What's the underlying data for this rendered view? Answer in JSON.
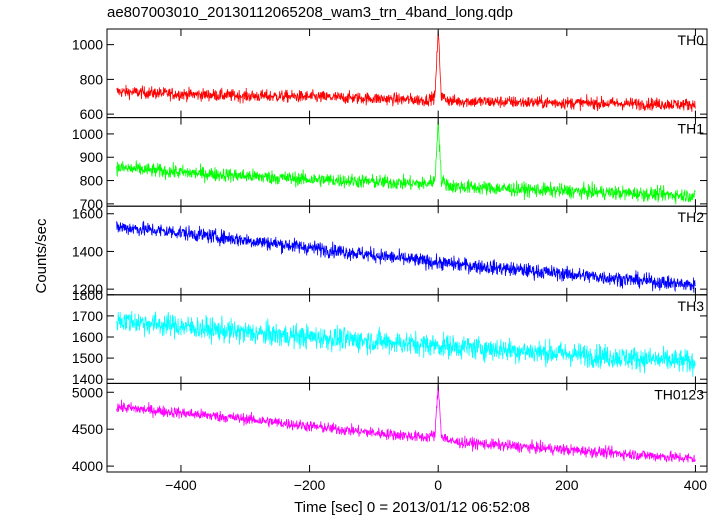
{
  "chart_data": {
    "type": "line",
    "title": "ae807003010_20130112065208_wam3_trn_4band_long.qdp",
    "xlabel": "Time [sec] 0 = 2013/01/12 06:52:08",
    "ylabel": "Counts/sec",
    "xlim": [
      -515,
      418
    ],
    "x_ticks": [
      -400,
      -200,
      0,
      200,
      400
    ],
    "x_tick_labels": [
      "−400",
      "−200",
      "0",
      "200",
      "400"
    ],
    "grid": false,
    "panels": [
      {
        "name": "TH0",
        "color": "#ff0000",
        "ylim": [
          580,
          1090
        ],
        "y_ticks": [
          600,
          800,
          1000
        ],
        "y_tick_labels": [
          "600",
          "800",
          "1000"
        ],
        "x": [
          -500,
          -400,
          -300,
          -200,
          -100,
          -20,
          -5,
          0,
          5,
          20,
          100,
          200,
          300,
          400
        ],
        "values": [
          730,
          715,
          705,
          700,
          690,
          680,
          700,
          1080,
          700,
          675,
          670,
          665,
          660,
          655
        ],
        "noise": 35
      },
      {
        "name": "TH1",
        "color": "#00ff00",
        "ylim": [
          690,
          1070
        ],
        "y_ticks": [
          700,
          800,
          900,
          1000
        ],
        "y_tick_labels": [
          "700",
          "800",
          "900",
          "1000"
        ],
        "x": [
          -500,
          -400,
          -300,
          -200,
          -100,
          -20,
          -5,
          0,
          5,
          20,
          100,
          200,
          300,
          400
        ],
        "values": [
          855,
          835,
          820,
          805,
          795,
          785,
          800,
          1060,
          800,
          775,
          765,
          755,
          745,
          735
        ],
        "noise": 30
      },
      {
        "name": "TH2",
        "color": "#0000ff",
        "ylim": [
          1170,
          1640
        ],
        "y_ticks": [
          1200,
          1400,
          1600
        ],
        "y_tick_labels": [
          "1200",
          "1400",
          "1600"
        ],
        "x": [
          -500,
          -400,
          -300,
          -200,
          -100,
          0,
          100,
          200,
          300,
          400
        ],
        "values": [
          1530,
          1500,
          1460,
          1420,
          1380,
          1340,
          1310,
          1280,
          1250,
          1220
        ],
        "noise": 38
      },
      {
        "name": "TH3",
        "color": "#00ffff",
        "ylim": [
          1380,
          1800
        ],
        "y_ticks": [
          1400,
          1500,
          1600,
          1700,
          1800
        ],
        "y_tick_labels": [
          "1400",
          "1500",
          "1600",
          "1700",
          "1800"
        ],
        "x": [
          -500,
          -400,
          -300,
          -200,
          -100,
          0,
          100,
          200,
          300,
          400
        ],
        "values": [
          1680,
          1650,
          1620,
          1600,
          1580,
          1560,
          1540,
          1520,
          1500,
          1480
        ],
        "noise": 55
      },
      {
        "name": "TH0123",
        "color": "#ff00ff",
        "ylim": [
          3920,
          5120
        ],
        "y_ticks": [
          4000,
          4500,
          5000
        ],
        "y_tick_labels": [
          "4000",
          "4500",
          "5000"
        ],
        "x": [
          -500,
          -400,
          -300,
          -200,
          -100,
          -20,
          -5,
          0,
          5,
          20,
          100,
          200,
          300,
          400
        ],
        "values": [
          4800,
          4720,
          4640,
          4540,
          4450,
          4390,
          4420,
          5100,
          4420,
          4330,
          4280,
          4220,
          4160,
          4100
        ],
        "noise": 75
      }
    ]
  }
}
